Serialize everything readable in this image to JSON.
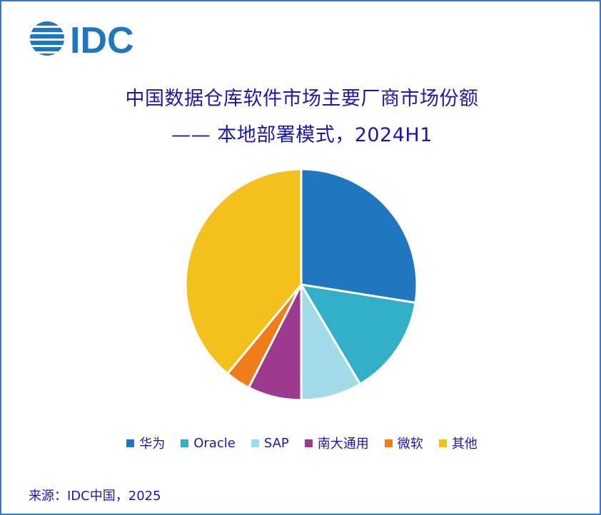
{
  "logo": {
    "text": "IDC",
    "color": "#1f77c0"
  },
  "chart_data": {
    "type": "pie",
    "title_line1": "中国数据仓库软件市场主要厂商市场份额",
    "title_line2": "—— 本地部署模式，2024H1",
    "legend_position": "bottom",
    "categories": [
      "华为",
      "Oracle",
      "SAP",
      "南大通用",
      "微软",
      "其他"
    ],
    "values": [
      27.5,
      14.0,
      8.5,
      7.5,
      3.5,
      39.0
    ],
    "unit": "%",
    "colors": [
      "#1f77c0",
      "#33aec8",
      "#a2dbe7",
      "#9b3a8f",
      "#f07d1a",
      "#f2c11b"
    ]
  },
  "source": "来源：IDC中国，2025"
}
